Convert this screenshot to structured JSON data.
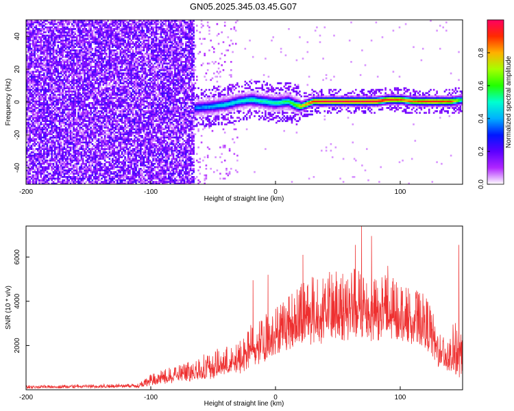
{
  "figure": {
    "title": "GN05.2025.345.03.45.G07"
  },
  "chart_data": [
    {
      "type": "heatmap",
      "xlabel": "Height of straight line (km)",
      "ylabel": "Frequency (Hz)",
      "xlim": [
        -200,
        150
      ],
      "ylim": [
        -50,
        50
      ],
      "xticks": [
        "-200",
        "-100",
        "0",
        "100"
      ],
      "xtick_values": [
        -200,
        -100,
        0,
        100
      ],
      "yticks": [
        "-40",
        "-20",
        "0",
        "20",
        "40"
      ],
      "ytick_values": [
        -40,
        -20,
        0,
        20,
        40
      ],
      "description_regions": {
        "noise_region_x": [
          -200,
          -65
        ],
        "signal_start_x": -65
      },
      "signal_ridge": {
        "x": [
          -65,
          -50,
          -40,
          -30,
          -20,
          -10,
          0,
          10,
          15,
          20,
          30,
          40,
          60,
          80,
          90,
          100,
          110,
          120,
          130,
          140,
          150
        ],
        "frequency": [
          -4,
          -3,
          -2,
          0,
          1,
          0,
          -1,
          0,
          -2,
          -3,
          0,
          0,
          0,
          0,
          1,
          1,
          0,
          0,
          0,
          0,
          1
        ],
        "amplitude": [
          0.35,
          0.4,
          0.45,
          0.45,
          0.5,
          0.5,
          0.5,
          0.55,
          0.6,
          0.75,
          0.9,
          0.95,
          0.95,
          0.95,
          0.9,
          0.85,
          0.85,
          0.9,
          0.9,
          0.85,
          0.5
        ]
      },
      "colorbar": {
        "label": "Normalized spectral amplitude",
        "range": [
          0,
          1
        ],
        "ticks": [
          "0.0",
          "0.2",
          "0.4",
          "0.6",
          "0.8"
        ],
        "tick_values": [
          0.0,
          0.2,
          0.4,
          0.6,
          0.8
        ],
        "colors": [
          "#ffffff",
          "#b026ff",
          "#5b00ff",
          "#0018ff",
          "#00b0ff",
          "#00ffd0",
          "#22ff00",
          "#a6ff00",
          "#ffb000",
          "#ff2a00",
          "#ff0060"
        ]
      },
      "noise_color": "#6a00ff"
    },
    {
      "type": "line",
      "xlabel": "Height of straight line (km)",
      "ylabel": "SNR (10 * v/v)",
      "xlim": [
        -200,
        150
      ],
      "ylim": [
        0,
        7400
      ],
      "xticks": [
        "-200",
        "-100",
        "0",
        "100"
      ],
      "xtick_values": [
        -200,
        -100,
        0,
        100
      ],
      "yticks": [
        "2000",
        "4000",
        "6000"
      ],
      "ytick_values": [
        2000,
        4000,
        6000
      ],
      "series": [
        {
          "color": "#ee3030",
          "envelope": {
            "x": [
              -200,
              -150,
              -110,
              -100,
              -90,
              -70,
              -50,
              -30,
              -20,
              -10,
              0,
              20,
              40,
              60,
              70,
              80,
              100,
              120,
              125,
              130,
              140,
              145,
              150
            ],
            "upper": [
              200,
              250,
              300,
              700,
              900,
              1300,
              1800,
              2100,
              3000,
              3400,
              3800,
              5000,
              5300,
              5500,
              5600,
              5500,
              4900,
              4300,
              3800,
              2700,
              2500,
              3500,
              2800
            ],
            "lower": [
              60,
              80,
              100,
              200,
              250,
              350,
              500,
              700,
              900,
              1200,
              1600,
              2000,
              2100,
              2200,
              2200,
              2200,
              2200,
              1900,
              1500,
              1000,
              700,
              500,
              600
            ]
          },
          "spikes": [
            {
              "x": -18,
              "y": 4950
            },
            {
              "x": -6,
              "y": 5200
            },
            {
              "x": 22,
              "y": 6100
            },
            {
              "x": 64,
              "y": 6550
            },
            {
              "x": 69,
              "y": 7400
            },
            {
              "x": 77,
              "y": 6950
            },
            {
              "x": 90,
              "y": 5600
            },
            {
              "x": 147,
              "y": 6550
            }
          ]
        }
      ]
    }
  ]
}
